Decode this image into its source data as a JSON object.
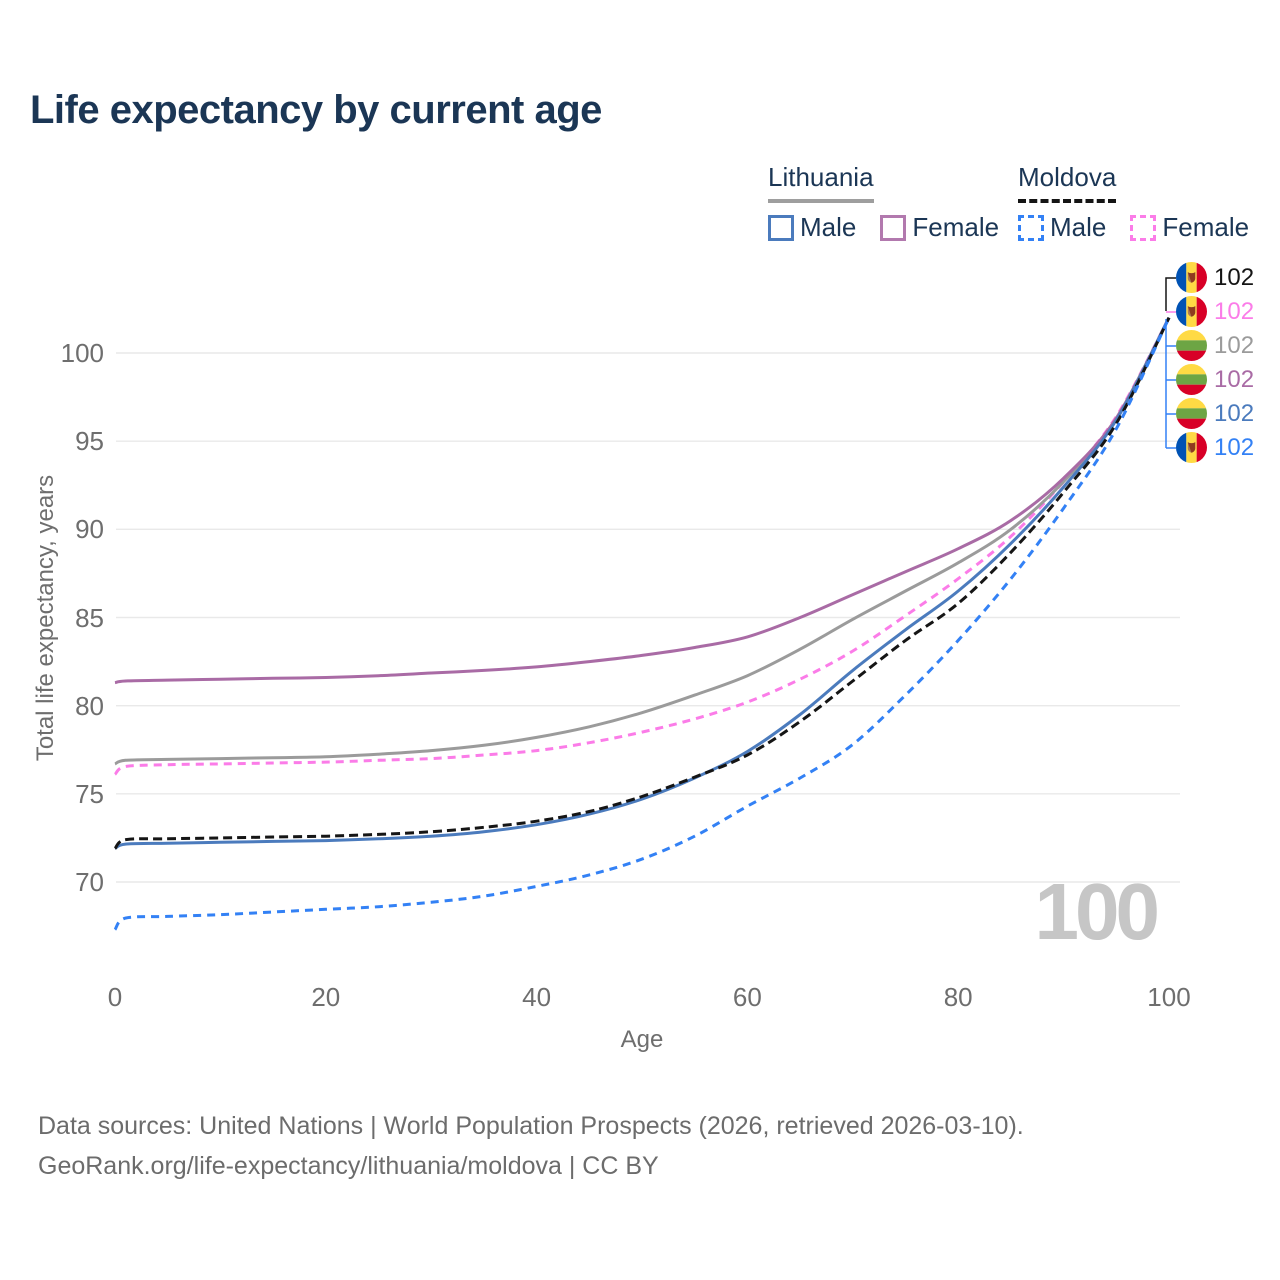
{
  "title": "Life expectancy by current age",
  "watermark": "100",
  "axes": {
    "x": {
      "label": "Age",
      "ticks": [
        0,
        20,
        40,
        60,
        80,
        100
      ]
    },
    "y": {
      "label": "Total life expectancy, years",
      "ticks": [
        70,
        75,
        80,
        85,
        90,
        95,
        100
      ]
    }
  },
  "legend": {
    "groups": [
      {
        "country": "Lithuania",
        "line_style": "solid",
        "line_color": "#9e9e9e",
        "items": [
          {
            "label": "Male",
            "color": "#4b7bbd",
            "dashed": false
          },
          {
            "label": "Female",
            "color": "#b279ae",
            "dashed": false
          }
        ]
      },
      {
        "country": "Moldova",
        "line_style": "dashed",
        "line_color": "#151515",
        "items": [
          {
            "label": "Male",
            "color": "#3381f5",
            "dashed": true
          },
          {
            "label": "Female",
            "color": "#fb7ce8",
            "dashed": true
          }
        ]
      }
    ]
  },
  "end_labels": [
    {
      "value": "102",
      "flag": "moldova",
      "color": "#151515"
    },
    {
      "value": "102",
      "flag": "moldova",
      "color": "#fb7ce8"
    },
    {
      "value": "102",
      "flag": "lithuania",
      "color": "#9b9b9b"
    },
    {
      "value": "102",
      "flag": "lithuania",
      "color": "#a96ba5"
    },
    {
      "value": "102",
      "flag": "lithuania",
      "color": "#4b7bbd"
    },
    {
      "value": "102",
      "flag": "moldova",
      "color": "#3381f5"
    }
  ],
  "chart_data": {
    "type": "line",
    "title": "Life expectancy by current age",
    "xlabel": "Age",
    "ylabel": "Total life expectancy, years",
    "xlim": [
      0,
      100
    ],
    "ylim_ticks": [
      70,
      100
    ],
    "grid": "horizontal",
    "x": [
      0,
      1,
      5,
      10,
      15,
      20,
      25,
      30,
      35,
      40,
      45,
      50,
      55,
      60,
      65,
      70,
      75,
      80,
      85,
      90,
      95,
      100
    ],
    "series": [
      {
        "id": "md-female",
        "name": "Moldova Female",
        "color": "#fb7ce8",
        "dashed": true,
        "values": [
          76.1,
          76.55,
          76.65,
          76.7,
          76.75,
          76.8,
          76.9,
          77.0,
          77.2,
          77.45,
          77.9,
          78.5,
          79.25,
          80.2,
          81.5,
          83.1,
          85.1,
          87.2,
          89.6,
          92.7,
          96.4,
          102
        ]
      },
      {
        "id": "lt-total",
        "name": "Lithuania (both sexes)",
        "color": "#9b9b9b",
        "dashed": false,
        "values": [
          76.7,
          76.9,
          76.95,
          77.0,
          77.05,
          77.1,
          77.25,
          77.45,
          77.75,
          78.2,
          78.8,
          79.6,
          80.6,
          81.7,
          83.2,
          84.9,
          86.5,
          88.1,
          90.0,
          92.7,
          96.3,
          102
        ]
      },
      {
        "id": "lt-female",
        "name": "Lithuania Female",
        "color": "#a96ba5",
        "dashed": false,
        "values": [
          81.3,
          81.4,
          81.45,
          81.5,
          81.55,
          81.6,
          81.7,
          81.85,
          82.0,
          82.2,
          82.5,
          82.85,
          83.3,
          83.9,
          85.0,
          86.3,
          87.6,
          88.9,
          90.5,
          92.9,
          96.3,
          102
        ]
      },
      {
        "id": "lt-male",
        "name": "Lithuania Male",
        "color": "#4b7bbd",
        "dashed": false,
        "values": [
          71.9,
          72.15,
          72.2,
          72.25,
          72.3,
          72.35,
          72.45,
          72.6,
          72.85,
          73.25,
          73.85,
          74.7,
          75.9,
          77.4,
          79.5,
          82.0,
          84.3,
          86.5,
          89.2,
          92.4,
          96.2,
          102
        ]
      },
      {
        "id": "md-total",
        "name": "Moldova (both sexes)",
        "color": "#151515",
        "dashed": true,
        "values": [
          71.9,
          72.4,
          72.45,
          72.5,
          72.55,
          72.6,
          72.7,
          72.85,
          73.1,
          73.45,
          74.0,
          74.85,
          75.95,
          77.2,
          79.1,
          81.4,
          83.7,
          85.8,
          88.7,
          92.1,
          96.0,
          102
        ]
      },
      {
        "id": "md-male",
        "name": "Moldova Male",
        "color": "#3381f5",
        "dashed": true,
        "values": [
          67.3,
          67.95,
          68.05,
          68.15,
          68.3,
          68.45,
          68.6,
          68.85,
          69.2,
          69.75,
          70.4,
          71.3,
          72.6,
          74.3,
          75.9,
          77.8,
          80.6,
          83.7,
          87.2,
          91.2,
          95.7,
          102
        ]
      }
    ]
  },
  "footer": {
    "line1": "Data sources: United Nations | World Population Prospects (2026, retrieved 2026-03-10).",
    "line2": "GeoRank.org/life-expectancy/lithuania/moldova | CC BY"
  }
}
